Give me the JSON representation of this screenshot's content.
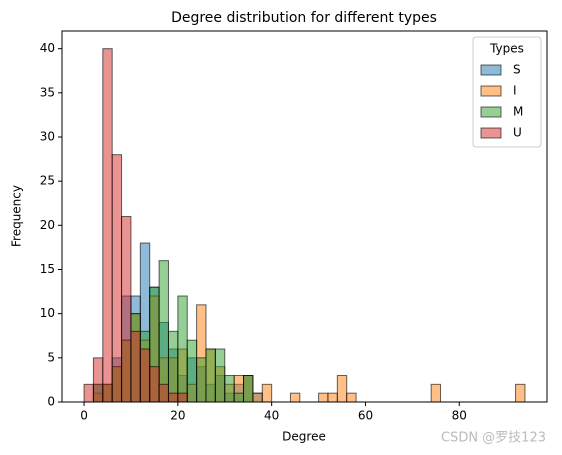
{
  "chart_data": {
    "type": "histogram",
    "title": "Degree distribution for different types",
    "x_label": "Degree",
    "y_label": "Frequency",
    "bins": [
      0,
      2,
      4,
      6,
      8,
      10,
      12,
      14,
      16,
      18,
      20,
      22,
      24,
      26,
      28,
      30,
      32,
      34,
      36,
      38,
      40,
      42,
      44,
      46,
      48,
      50,
      52,
      54,
      56,
      58,
      60,
      62,
      64,
      66,
      68,
      70,
      72,
      74,
      76,
      78,
      80,
      82,
      84,
      86,
      88,
      90,
      92,
      94
    ],
    "series": [
      {
        "name": "S",
        "color": "#1f77b4",
        "values": [
          0,
          2,
          2,
          5,
          12,
          12,
          18,
          13,
          9,
          6,
          3,
          5,
          4,
          2,
          3,
          1,
          2,
          3,
          1,
          0,
          0,
          0,
          0,
          0,
          0,
          0,
          0,
          0,
          0,
          0,
          0,
          0,
          0,
          0,
          0,
          0,
          0,
          0,
          0,
          0,
          0,
          0,
          0,
          0,
          0,
          0,
          0
        ]
      },
      {
        "name": "I",
        "color": "#ff7f0e",
        "values": [
          0,
          1,
          2,
          4,
          7,
          10,
          7,
          12,
          5,
          5,
          6,
          2,
          11,
          6,
          4,
          2,
          3,
          3,
          1,
          2,
          0,
          0,
          1,
          0,
          0,
          1,
          1,
          3,
          1,
          0,
          0,
          0,
          0,
          0,
          0,
          0,
          0,
          2,
          0,
          0,
          0,
          0,
          0,
          0,
          0,
          0,
          2
        ]
      },
      {
        "name": "M",
        "color": "#2ca02c",
        "values": [
          0,
          2,
          2,
          4,
          7,
          10,
          8,
          13,
          16,
          8,
          12,
          7,
          5,
          6,
          6,
          3,
          1,
          3,
          0,
          0,
          0,
          0,
          0,
          0,
          0,
          0,
          0,
          0,
          0,
          0,
          0,
          0,
          0,
          0,
          0,
          0,
          0,
          0,
          0,
          0,
          0,
          0,
          0,
          0,
          0,
          0,
          0
        ]
      },
      {
        "name": "U",
        "color": "#d62728",
        "values": [
          2,
          5,
          40,
          28,
          21,
          8,
          6,
          4,
          2,
          1,
          1,
          0,
          0,
          0,
          0,
          0,
          0,
          0,
          0,
          0,
          0,
          0,
          0,
          0,
          0,
          0,
          0,
          0,
          0,
          0,
          0,
          0,
          0,
          0,
          0,
          0,
          0,
          0,
          0,
          0,
          0,
          0,
          0,
          0,
          0,
          0,
          0
        ]
      }
    ],
    "xlim": [
      -4.7,
      98.7
    ],
    "ylim": [
      0,
      42
    ],
    "xticks": [
      0,
      20,
      40,
      60,
      80
    ],
    "yticks": [
      0,
      5,
      10,
      15,
      20,
      25,
      30,
      35,
      40
    ],
    "legend_title": "Types",
    "legend": "upper right",
    "alpha": 0.5,
    "watermark": "CSDN @罗技123"
  }
}
